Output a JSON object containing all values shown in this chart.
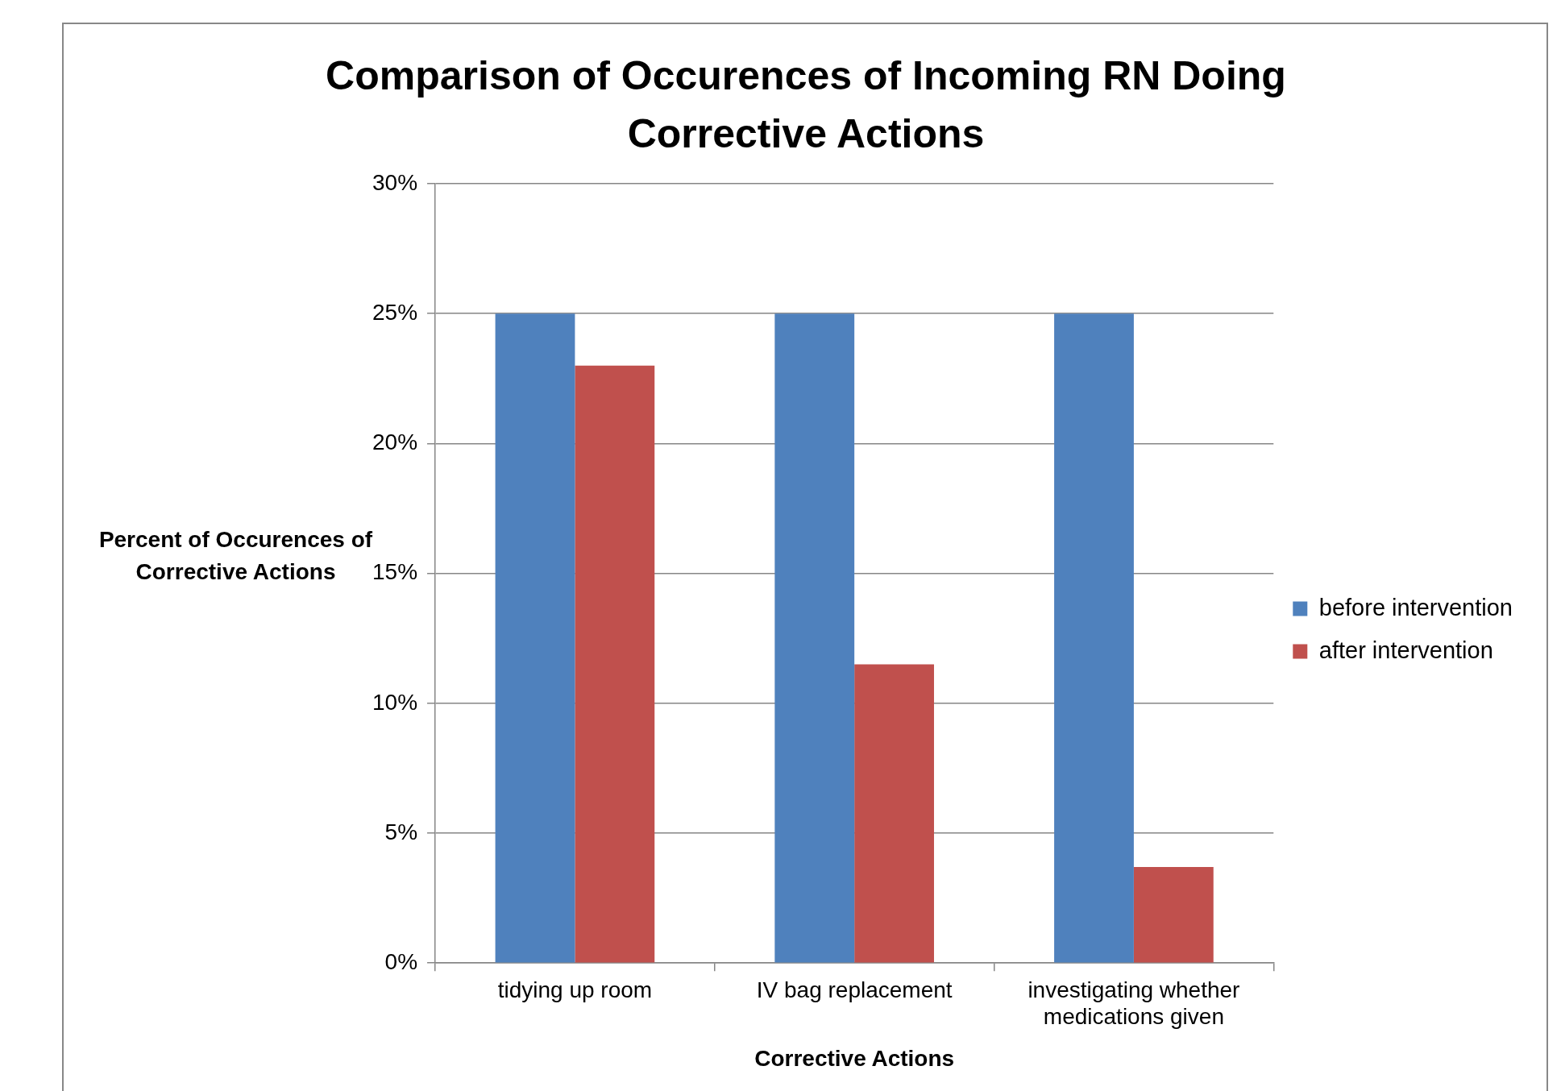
{
  "chart_data": {
    "type": "bar",
    "title": "Comparison of Occurences of Incoming RN Doing Corrective Actions",
    "xlabel": "Corrective Actions",
    "ylabel": "Percent of Occurences of Corrective Actions",
    "categories": [
      "tidying up room",
      "IV bag replacement",
      "investigating whether medications given"
    ],
    "series": [
      {
        "name": "before intervention",
        "color": "#4f81bd",
        "values": [
          25,
          25,
          25
        ]
      },
      {
        "name": "after intervention",
        "color": "#c0504d",
        "values": [
          23,
          11.5,
          3.7
        ]
      }
    ],
    "ylim": [
      0,
      30
    ],
    "yticks": [
      {
        "value": 0,
        "label": "0%"
      },
      {
        "value": 5,
        "label": "5%"
      },
      {
        "value": 10,
        "label": "10%"
      },
      {
        "value": 15,
        "label": "15%"
      },
      {
        "value": 20,
        "label": "20%"
      },
      {
        "value": 25,
        "label": "25%"
      },
      {
        "value": 30,
        "label": "30%"
      }
    ],
    "grid": "y",
    "legend": "right"
  }
}
